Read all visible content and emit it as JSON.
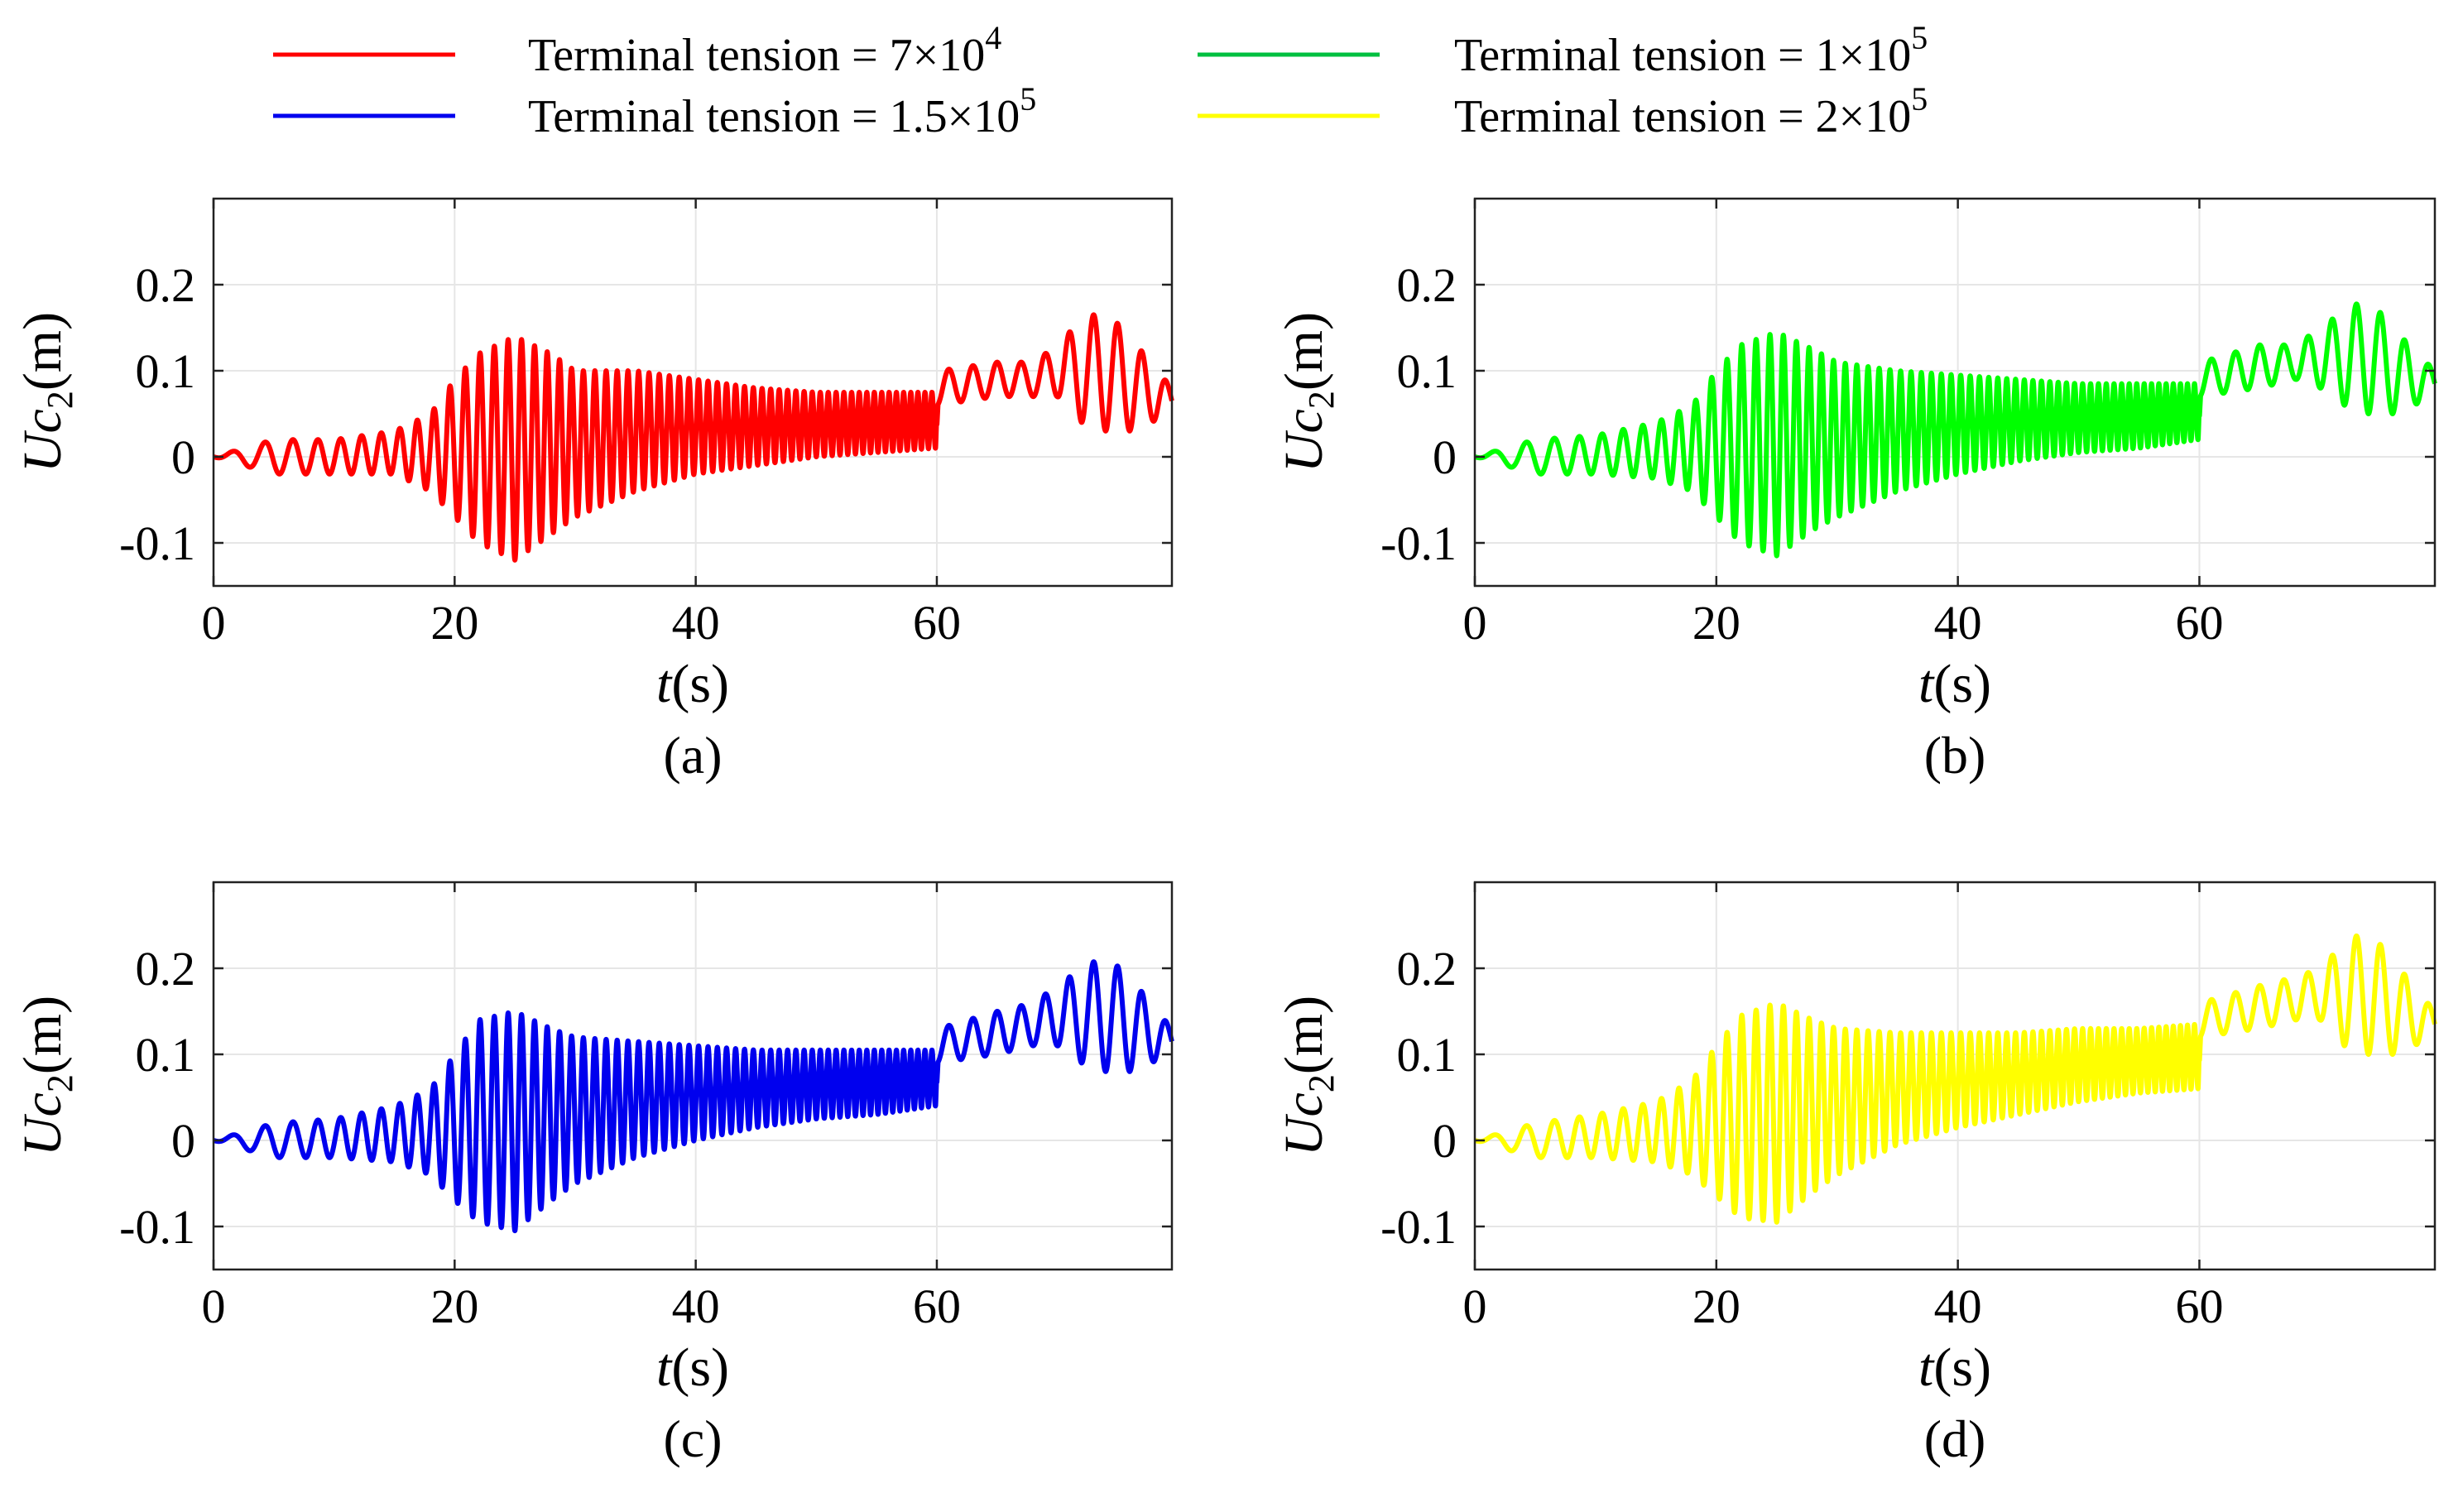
{
  "legend": {
    "placement": "top",
    "entries": [
      {
        "label": "Terminal tension = 7×10",
        "exp": "4",
        "color": "#ff0000"
      },
      {
        "label": "Terminal tension = 1×10",
        "exp": "5",
        "color": "#00c040"
      },
      {
        "label": "Terminal tension = 1.5×10",
        "exp": "5",
        "color": "#0000ee"
      },
      {
        "label": "Terminal tension = 2×10",
        "exp": "5",
        "color": "#ffff00"
      }
    ]
  },
  "chart_data": [
    {
      "type": "line",
      "caption": "(a)",
      "series_name": "Terminal tension = 7×10^4",
      "color": "#ff0000",
      "xlabel": {
        "var": "t",
        "unit": "(s)"
      },
      "ylabel": {
        "var": "Uc",
        "sub": "2",
        "unit": "(m)"
      },
      "xlim": [
        0,
        79.5
      ],
      "ylim": [
        -0.15,
        0.3
      ],
      "xticks": [
        0,
        20,
        40,
        60
      ],
      "yticks": [
        -0.1,
        0,
        0.1,
        0.2
      ],
      "xtick_labels": [
        "0",
        "20",
        "40",
        "60"
      ],
      "ytick_labels": [
        "-0.1",
        "0",
        "0.1",
        "0.2"
      ],
      "grid": true,
      "envelope": {
        "t": [
          0,
          5,
          10,
          15,
          18,
          20,
          22,
          25,
          28,
          30,
          35,
          40,
          45,
          50,
          55,
          59.9,
          60.1,
          65,
          68,
          70,
          72,
          74,
          76,
          79.5
        ],
        "upper": [
          0,
          0.02,
          0.02,
          0.03,
          0.05,
          0.09,
          0.12,
          0.14,
          0.12,
          0.1,
          0.1,
          0.09,
          0.08,
          0.075,
          0.075,
          0.075,
          0.1,
          0.11,
          0.11,
          0.13,
          0.16,
          0.17,
          0.14,
          0.08
        ],
        "lower": [
          0,
          -0.02,
          -0.02,
          -0.02,
          -0.04,
          -0.07,
          -0.1,
          -0.12,
          -0.09,
          -0.07,
          -0.04,
          -0.02,
          -0.01,
          0.0,
          0.005,
          0.01,
          0.06,
          0.07,
          0.07,
          0.07,
          0.04,
          0.03,
          0.03,
          0.05
        ]
      }
    },
    {
      "type": "line",
      "caption": "(b)",
      "series_name": "Terminal tension = 1×10^5",
      "color": "#00ff00",
      "xlabel": {
        "var": "t",
        "unit": "(s)"
      },
      "ylabel": {
        "var": "Uc",
        "sub": "2",
        "unit": "(m)"
      },
      "xlim": [
        0,
        79.5
      ],
      "ylim": [
        -0.15,
        0.3
      ],
      "xticks": [
        0,
        20,
        40,
        60
      ],
      "yticks": [
        -0.1,
        0,
        0.1,
        0.2
      ],
      "xtick_labels": [
        "0",
        "20",
        "40",
        "60"
      ],
      "ytick_labels": [
        "-0.1",
        "0",
        "0.1",
        "0.2"
      ],
      "grid": true,
      "envelope": {
        "t": [
          0,
          5,
          10,
          15,
          18,
          20,
          22,
          25,
          28,
          30,
          35,
          40,
          45,
          50,
          55,
          59.9,
          60.1,
          65,
          68,
          70,
          72,
          74,
          76,
          79.5
        ],
        "upper": [
          0,
          0.02,
          0.025,
          0.04,
          0.06,
          0.1,
          0.13,
          0.145,
          0.125,
          0.11,
          0.1,
          0.095,
          0.09,
          0.085,
          0.085,
          0.085,
          0.11,
          0.13,
          0.13,
          0.15,
          0.17,
          0.185,
          0.15,
          0.1
        ],
        "lower": [
          0,
          -0.02,
          -0.02,
          -0.025,
          -0.04,
          -0.07,
          -0.1,
          -0.115,
          -0.085,
          -0.07,
          -0.04,
          -0.02,
          -0.005,
          0.005,
          0.01,
          0.02,
          0.07,
          0.08,
          0.09,
          0.08,
          0.06,
          0.05,
          0.05,
          0.07
        ]
      }
    },
    {
      "type": "line",
      "caption": "(c)",
      "series_name": "Terminal tension = 1.5×10^5",
      "color": "#0000ee",
      "xlabel": {
        "var": "t",
        "unit": "(s)"
      },
      "ylabel": {
        "var": "Uc",
        "sub": "2",
        "unit": "(m)"
      },
      "xlim": [
        0,
        79.5
      ],
      "ylim": [
        -0.15,
        0.3
      ],
      "xticks": [
        0,
        20,
        40,
        60
      ],
      "yticks": [
        -0.1,
        0,
        0.1,
        0.2
      ],
      "xtick_labels": [
        "0",
        "20",
        "40",
        "60"
      ],
      "ytick_labels": [
        "-0.1",
        "0",
        "0.1",
        "0.2"
      ],
      "grid": true,
      "envelope": {
        "t": [
          0,
          5,
          10,
          15,
          18,
          20,
          22,
          25,
          28,
          30,
          35,
          40,
          45,
          50,
          55,
          59.9,
          60.1,
          65,
          68,
          70,
          72,
          74,
          76,
          79.5
        ],
        "upper": [
          0,
          0.02,
          0.025,
          0.04,
          0.06,
          0.1,
          0.14,
          0.15,
          0.13,
          0.12,
          0.115,
          0.11,
          0.105,
          0.105,
          0.105,
          0.105,
          0.13,
          0.15,
          0.16,
          0.18,
          0.2,
          0.215,
          0.19,
          0.13
        ],
        "lower": [
          0,
          -0.02,
          -0.02,
          -0.025,
          -0.04,
          -0.07,
          -0.095,
          -0.105,
          -0.07,
          -0.05,
          -0.02,
          0.0,
          0.015,
          0.025,
          0.03,
          0.04,
          0.09,
          0.1,
          0.11,
          0.11,
          0.09,
          0.08,
          0.08,
          0.1
        ]
      }
    },
    {
      "type": "line",
      "caption": "(d)",
      "series_name": "Terminal tension = 2×10^5",
      "color": "#ffff00",
      "xlabel": {
        "var": "t",
        "unit": "(s)"
      },
      "ylabel": {
        "var": "Uc",
        "sub": "2",
        "unit": "(m)"
      },
      "xlim": [
        0,
        79.5
      ],
      "ylim": [
        -0.15,
        0.3
      ],
      "xticks": [
        0,
        20,
        40,
        60
      ],
      "yticks": [
        -0.1,
        0,
        0.1,
        0.2
      ],
      "xtick_labels": [
        "0",
        "20",
        "40",
        "60"
      ],
      "ytick_labels": [
        "-0.1",
        "0",
        "0.1",
        "0.2"
      ],
      "grid": true,
      "envelope": {
        "t": [
          0,
          5,
          10,
          15,
          18,
          20,
          22,
          25,
          28,
          30,
          35,
          40,
          45,
          50,
          55,
          59.9,
          60.1,
          65,
          68,
          70,
          72,
          74,
          76,
          79.5
        ],
        "upper": [
          0,
          0.02,
          0.03,
          0.045,
          0.07,
          0.11,
          0.145,
          0.16,
          0.14,
          0.13,
          0.125,
          0.125,
          0.125,
          0.13,
          0.13,
          0.135,
          0.16,
          0.18,
          0.19,
          0.2,
          0.23,
          0.245,
          0.21,
          0.15
        ],
        "lower": [
          0,
          -0.02,
          -0.02,
          -0.025,
          -0.04,
          -0.065,
          -0.09,
          -0.095,
          -0.06,
          -0.04,
          -0.005,
          0.015,
          0.03,
          0.045,
          0.055,
          0.06,
          0.12,
          0.13,
          0.14,
          0.14,
          0.11,
          0.1,
          0.1,
          0.12
        ]
      }
    }
  ]
}
